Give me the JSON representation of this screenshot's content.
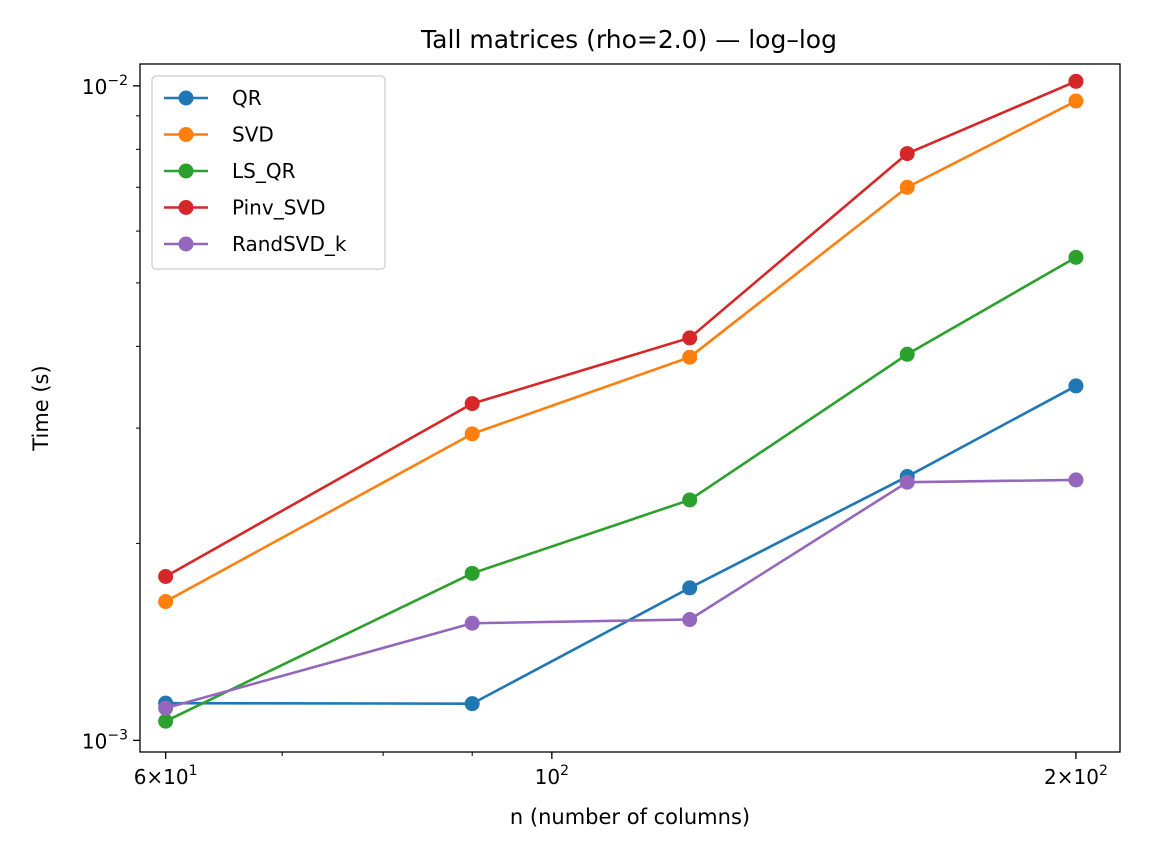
{
  "chart_data": {
    "type": "line",
    "title": "Tall matrices (rho=2.0) — log–log",
    "xlabel": "n (number of columns)",
    "ylabel": "Time (s)",
    "xscale": "log",
    "yscale": "log",
    "xlim": [
      58,
      212
    ],
    "ylim": [
      0.00096,
      0.0108
    ],
    "grid": false,
    "legend_position": "top-left",
    "x": [
      60,
      90,
      120,
      160,
      200
    ],
    "x_tick_labels": [
      {
        "value": 60,
        "base": "6",
        "mant": "×10",
        "exp": "1"
      },
      {
        "value": 100,
        "base": "",
        "mant": "10",
        "exp": "2"
      },
      {
        "value": 200,
        "base": "2",
        "mant": "×10",
        "exp": "2"
      }
    ],
    "y_tick_labels": [
      {
        "value": 0.001,
        "mant": "10",
        "exp": "−3"
      },
      {
        "value": 0.01,
        "mant": "10",
        "exp": "−2"
      }
    ],
    "series": [
      {
        "name": "QR",
        "color": "#1f77b4",
        "values": [
          0.00114,
          0.001138,
          0.00171,
          0.00253,
          0.00348
        ]
      },
      {
        "name": "SVD",
        "color": "#ff7f0e",
        "values": [
          0.00163,
          0.00294,
          0.00385,
          0.007,
          0.00948
        ]
      },
      {
        "name": "LS_QR",
        "color": "#2ca02c",
        "values": [
          0.00107,
          0.0018,
          0.00233,
          0.00389,
          0.00547
        ]
      },
      {
        "name": "Pinv_SVD",
        "color": "#d62728",
        "values": [
          0.00178,
          0.00327,
          0.00412,
          0.00788,
          0.01016
        ]
      },
      {
        "name": "RandSVD_k",
        "color": "#9467bd",
        "values": [
          0.00112,
          0.00151,
          0.00153,
          0.00248,
          0.0025
        ]
      }
    ]
  }
}
